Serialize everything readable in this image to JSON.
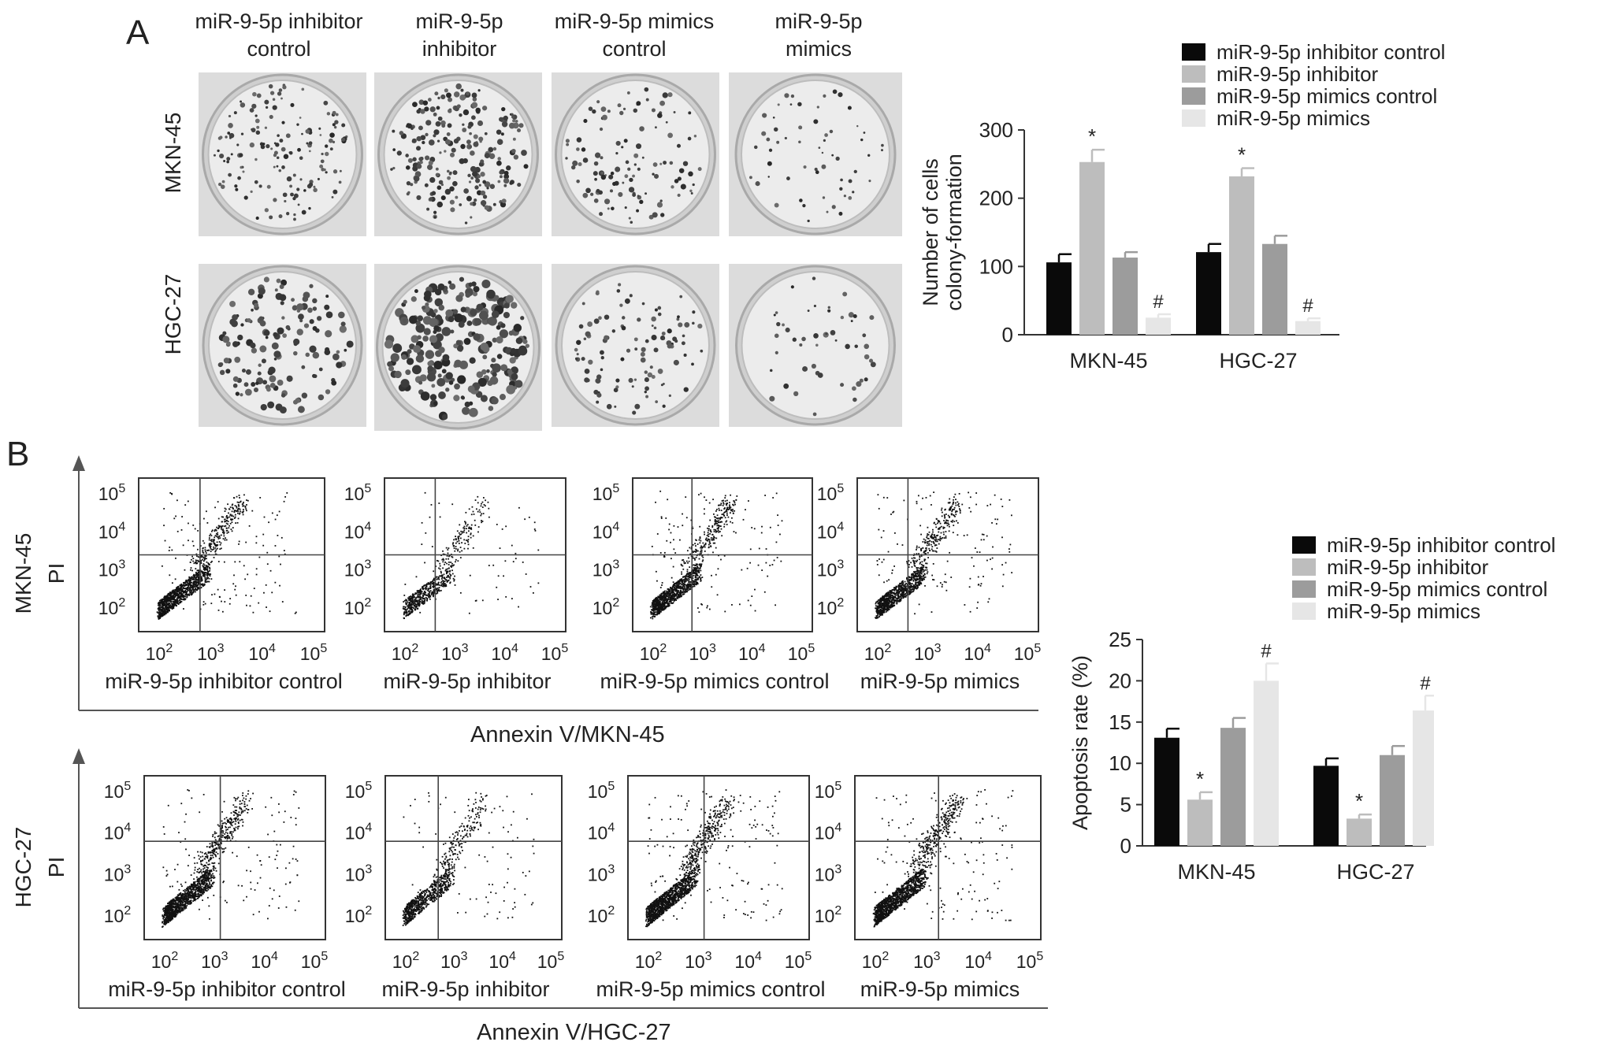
{
  "panels": {
    "a": "A",
    "b": "B"
  },
  "colors": [
    "#0a0a0a",
    "#bdbdbd",
    "#9c9c9c",
    "#e6e6e6"
  ],
  "panel_a": {
    "column_headers": [
      "miR-9-5p inhibitor\ncontrol",
      "miR-9-5p\ninhibitor",
      "miR-9-5p mimics\ncontrol",
      "miR-9-5p\nmimics"
    ],
    "row_labels": [
      "MKN-45",
      "HGC-27"
    ]
  },
  "panel_b": {
    "rows": [
      {
        "cell_line": "MKN-45",
        "ylabel": "PI",
        "xlabel": "Annexin V/MKN-45",
        "plots": [
          "miR-9-5p inhibitor control",
          "miR-9-5p inhibitor",
          "miR-9-5p mimics control",
          "miR-9-5p mimics"
        ]
      },
      {
        "cell_line": "HGC-27",
        "ylabel": "PI",
        "xlabel": "Annexin V/HGC-27",
        "plots": [
          "miR-9-5p inhibitor control",
          "miR-9-5p inhibitor",
          "miR-9-5p mimics control",
          "miR-9-5p mimics"
        ]
      }
    ],
    "tick_base": "10",
    "tick_exponents": [
      "2",
      "3",
      "4",
      "5"
    ]
  },
  "chart_data": [
    {
      "type": "bar",
      "title": "",
      "xlabel": "",
      "ylabel": "Number of cells\ncolony-formation",
      "ylim": [
        0,
        300
      ],
      "yticks": [
        "0",
        "100",
        "200",
        "300"
      ],
      "categories": [
        "MKN-45",
        "HGC-27"
      ],
      "legend_position": "top",
      "series": [
        {
          "name": "miR-9-5p inhibitor control",
          "values": [
            106,
            121
          ],
          "errors": [
            12,
            12
          ],
          "marks": [
            "",
            ""
          ]
        },
        {
          "name": "miR-9-5p inhibitor",
          "values": [
            253,
            232
          ],
          "errors": [
            18,
            12
          ],
          "marks": [
            "*",
            "*"
          ]
        },
        {
          "name": "miR-9-5p mimics control",
          "values": [
            113,
            133
          ],
          "errors": [
            8,
            12
          ],
          "marks": [
            "",
            ""
          ]
        },
        {
          "name": "miR-9-5p mimics",
          "values": [
            25,
            20
          ],
          "errors": [
            5,
            4
          ],
          "marks": [
            "#",
            "#"
          ]
        }
      ]
    },
    {
      "type": "bar",
      "title": "",
      "xlabel": "",
      "ylabel": "Apoptosis rate (%)",
      "ylim": [
        0,
        25
      ],
      "yticks": [
        "0",
        "5",
        "10",
        "15",
        "20",
        "25"
      ],
      "categories": [
        "MKN-45",
        "HGC-27"
      ],
      "legend_position": "top",
      "series": [
        {
          "name": "miR-9-5p inhibitor control",
          "values": [
            13.1,
            9.7
          ],
          "errors": [
            1.1,
            0.9
          ],
          "marks": [
            "",
            ""
          ]
        },
        {
          "name": "miR-9-5p inhibitor",
          "values": [
            5.6,
            3.3
          ],
          "errors": [
            0.9,
            0.5
          ],
          "marks": [
            "*",
            "*"
          ]
        },
        {
          "name": "miR-9-5p mimics control",
          "values": [
            14.3,
            11.0
          ],
          "errors": [
            1.2,
            1.1
          ],
          "marks": [
            "",
            ""
          ]
        },
        {
          "name": "miR-9-5p mimics",
          "values": [
            20.0,
            16.4
          ],
          "errors": [
            2.1,
            1.8
          ],
          "marks": [
            "#",
            "#"
          ]
        }
      ]
    }
  ]
}
